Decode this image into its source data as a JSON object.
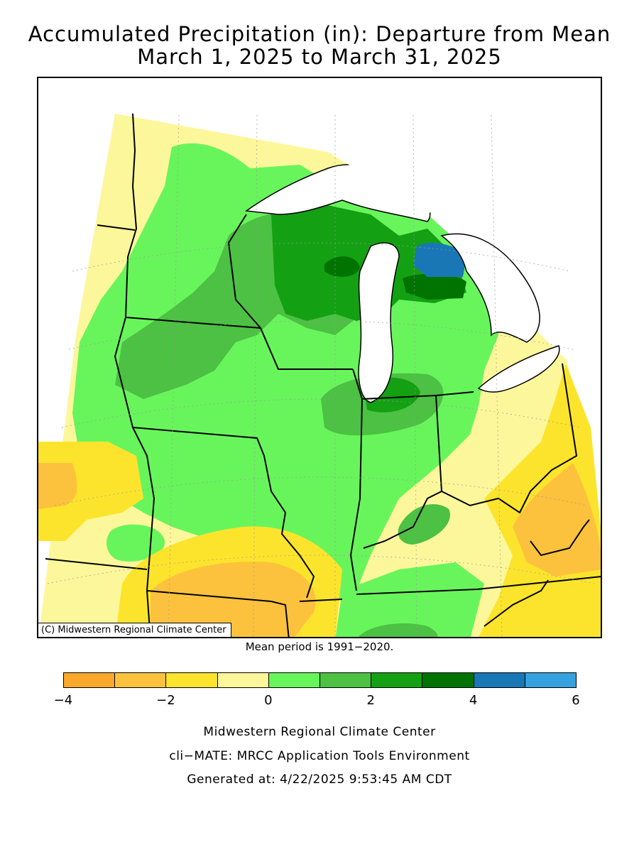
{
  "title": {
    "line1": "Accumulated Precipitation (in): Departure from Mean",
    "line2": "March 1, 2025 to March 31, 2025"
  },
  "map": {
    "copyright": "(C) Midwestern Regional Climate Center",
    "regions": [
      "Minnesota",
      "Wisconsin",
      "Michigan",
      "Iowa",
      "Illinois",
      "Indiana",
      "Ohio",
      "Missouri",
      "Kentucky"
    ]
  },
  "mean_period": "Mean period is 1991−2020.",
  "legend": {
    "colors": [
      "#f9a82b",
      "#fcc23d",
      "#fde42c",
      "#fdf79b",
      "#68f55c",
      "#4cc143",
      "#14a013",
      "#007300",
      "#1a77b6",
      "#35a2df"
    ],
    "bins": [
      [
        -4,
        -3
      ],
      [
        -3,
        -2
      ],
      [
        -2,
        -1
      ],
      [
        -1,
        0
      ],
      [
        0,
        1
      ],
      [
        1,
        2
      ],
      [
        2,
        3
      ],
      [
        3,
        4
      ],
      [
        4,
        5
      ],
      [
        5,
        6
      ]
    ],
    "tick_labels": [
      "−4",
      "−2",
      "0",
      "2",
      "4",
      "6"
    ],
    "units": "in"
  },
  "footer": {
    "line1": "Midwestern Regional Climate Center",
    "line2": "cli−MATE: MRCC Application Tools Environment",
    "line3": "Generated at: 4/22/2025 9:53:45 AM CDT"
  }
}
